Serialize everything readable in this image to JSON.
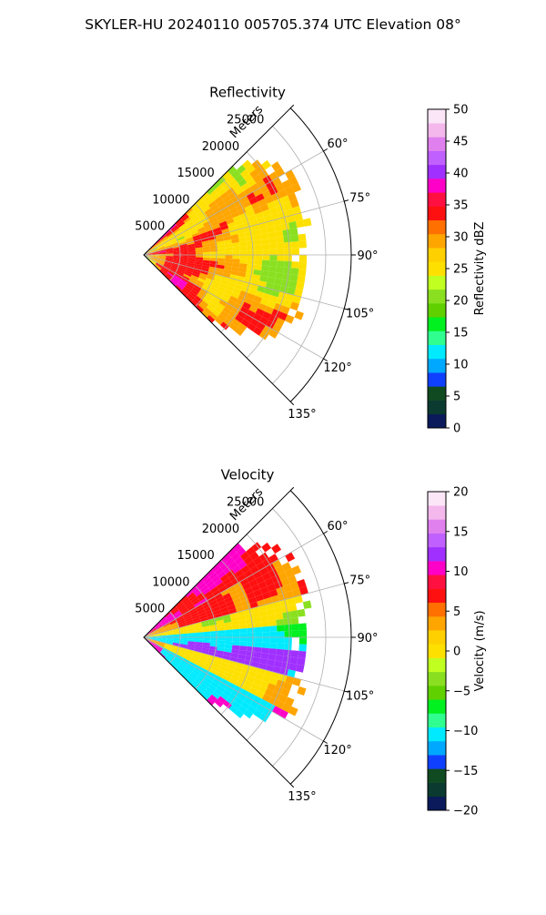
{
  "figure": {
    "title": "SKYLER-HU  20240110  005705.374 UTC Elevation 08°"
  },
  "chart_data": [
    {
      "type": "heatmap",
      "title": "Reflectivity",
      "projection": "polar-sector",
      "theta_range_deg": [
        45,
        135
      ],
      "theta_ticks": [
        "60°",
        "75°",
        "90°",
        "105°",
        "120°",
        "135°"
      ],
      "r_label": "Meters",
      "r_max": 28500,
      "r_ticks": [
        "5000",
        "10000",
        "15000",
        "20000",
        "25000"
      ],
      "grid": true,
      "colorbar": {
        "label": "Reflectivity dBZ",
        "range": [
          0,
          50
        ],
        "ticks": [
          "0",
          "5",
          "10",
          "15",
          "20",
          "25",
          "30",
          "35",
          "40",
          "45",
          "50"
        ]
      }
    },
    {
      "type": "heatmap",
      "title": "Velocity",
      "projection": "polar-sector",
      "theta_range_deg": [
        45,
        135
      ],
      "theta_ticks": [
        "60°",
        "75°",
        "90°",
        "105°",
        "120°",
        "135°"
      ],
      "r_label": "Meters",
      "r_max": 28500,
      "r_ticks": [
        "5000",
        "10000",
        "15000",
        "20000",
        "25000"
      ],
      "grid": true,
      "colorbar": {
        "label": "Velocity (m/s)",
        "range": [
          -20,
          20
        ],
        "ticks": [
          "−20",
          "−15",
          "−10",
          "−5",
          "0",
          "5",
          "10",
          "15",
          "20"
        ]
      }
    }
  ]
}
